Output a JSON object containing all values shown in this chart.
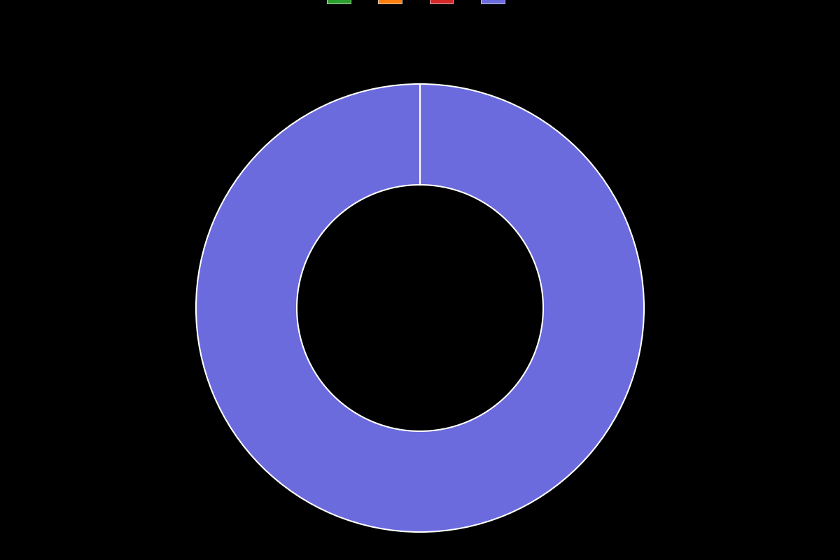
{
  "slices": [
    0.001,
    0.001,
    0.001,
    99.997
  ],
  "colors": [
    "#2ca02c",
    "#ff7f0e",
    "#d62728",
    "#6b6bde"
  ],
  "wedge_edge_color": "white",
  "wedge_linewidth": 1.5,
  "background_color": "#000000",
  "legend_colors": [
    "#2ca02c",
    "#ff7f0e",
    "#d62728",
    "#6b6bde"
  ],
  "legend_labels": [
    "",
    "",
    "",
    ""
  ],
  "donut_width": 0.45,
  "startangle": 90,
  "figsize": [
    12.0,
    8.0
  ],
  "dpi": 100
}
